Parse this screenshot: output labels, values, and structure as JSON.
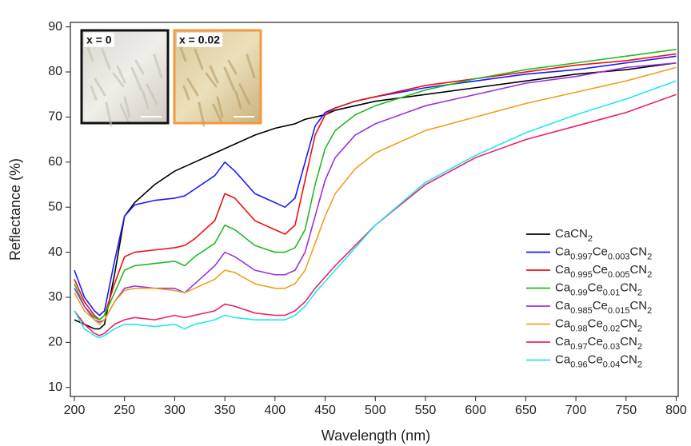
{
  "chart_data": {
    "type": "line",
    "x_label": "Wavelength (nm)",
    "y_label": "Reflectance (%)",
    "x": [
      200,
      210,
      220,
      225,
      230,
      240,
      250,
      260,
      280,
      300,
      310,
      320,
      340,
      350,
      360,
      380,
      400,
      410,
      420,
      430,
      440,
      450,
      460,
      480,
      500,
      550,
      600,
      650,
      700,
      750,
      800
    ],
    "series": [
      {
        "name": "CaCN2",
        "color": "#000000",
        "values": [
          25,
          24,
          23,
          23,
          24,
          35,
          48,
          51,
          55,
          58,
          59,
          60,
          62,
          63,
          64,
          66,
          67.5,
          68,
          68.5,
          69.5,
          70,
          70.5,
          71.5,
          72.5,
          73.5,
          75,
          76.5,
          78,
          79.5,
          80.5,
          82
        ]
      },
      {
        "name": "Ca0.997Ce0.003CN2",
        "color": "#1a1aff",
        "values": [
          36,
          30,
          27,
          26,
          27,
          38,
          48,
          50.5,
          51.5,
          52,
          52.5,
          54,
          57,
          60,
          58,
          53,
          51,
          50,
          52,
          60,
          68,
          71,
          72,
          73.5,
          74.5,
          76.5,
          78,
          79.5,
          80.5,
          82,
          83.5
        ]
      },
      {
        "name": "Ca0.995Ce0.005CN2",
        "color": "#ee1111",
        "values": [
          34,
          29,
          26,
          25,
          26,
          33,
          39,
          40,
          40.5,
          41,
          41.5,
          43,
          47,
          53,
          52,
          47,
          45,
          44,
          46,
          56,
          66,
          70.5,
          72,
          73.5,
          74.5,
          77,
          78.5,
          80,
          81.5,
          82.5,
          84
        ]
      },
      {
        "name": "Ca0.99Ce0.01CN2",
        "color": "#22bb22",
        "values": [
          33,
          28,
          25.5,
          25,
          26,
          31,
          36,
          37,
          37.5,
          38,
          37,
          39,
          42,
          46,
          45,
          41.5,
          40,
          40,
          41,
          45,
          55,
          63,
          67,
          70.5,
          72.5,
          76,
          78.5,
          80.5,
          82,
          83.5,
          85
        ]
      },
      {
        "name": "Ca0.985Ce0.015CN2",
        "color": "#9933dd",
        "values": [
          32,
          28,
          25,
          24.5,
          25,
          29,
          32,
          32.5,
          32,
          32,
          31,
          33,
          37,
          40,
          39,
          36,
          35,
          35,
          36,
          40,
          48,
          56,
          61,
          66,
          68.5,
          72.5,
          75,
          77.5,
          79,
          81,
          82
        ]
      },
      {
        "name": "Ca0.98Ce0.02CN2",
        "color": "#f0a020",
        "values": [
          31,
          27,
          25,
          24,
          25,
          29,
          31.5,
          32,
          32,
          31.5,
          31,
          32,
          34,
          36,
          35.5,
          33,
          32,
          32,
          33,
          36,
          42,
          48,
          53,
          58.5,
          62,
          67,
          70,
          73,
          75.5,
          78,
          81
        ]
      },
      {
        "name": "Ca0.97Ce0.03CN2",
        "color": "#ee2266",
        "values": [
          27,
          24,
          22,
          21.5,
          22,
          24,
          25,
          25.5,
          25,
          26,
          25.5,
          26,
          27,
          28.5,
          28,
          26.5,
          26,
          26,
          27,
          29,
          32,
          34.5,
          37,
          41.5,
          46,
          55,
          61,
          65,
          68,
          71,
          75
        ]
      },
      {
        "name": "Ca0.96Ce0.04CN2",
        "color": "#22e8ee",
        "values": [
          27,
          23,
          21.5,
          21,
          21.5,
          23,
          24,
          24,
          23.5,
          24,
          23,
          24,
          25,
          26,
          25.5,
          25,
          25,
          25,
          26,
          28,
          31,
          33.5,
          36,
          41,
          46,
          55.5,
          61.5,
          66.5,
          70.5,
          74,
          78
        ]
      }
    ],
    "xlim": [
      196,
      802
    ],
    "ylim": [
      8,
      91
    ],
    "xticks": [
      200,
      250,
      300,
      350,
      400,
      450,
      500,
      550,
      600,
      650,
      700,
      750,
      800
    ],
    "yticks": [
      10,
      20,
      30,
      40,
      50,
      60,
      70,
      80,
      90
    ],
    "grid": false,
    "legend": "lower right",
    "insets": [
      {
        "label": "x = 0",
        "color": "#111111"
      },
      {
        "label": "x = 0.02",
        "color": "#f39a3c"
      }
    ]
  }
}
